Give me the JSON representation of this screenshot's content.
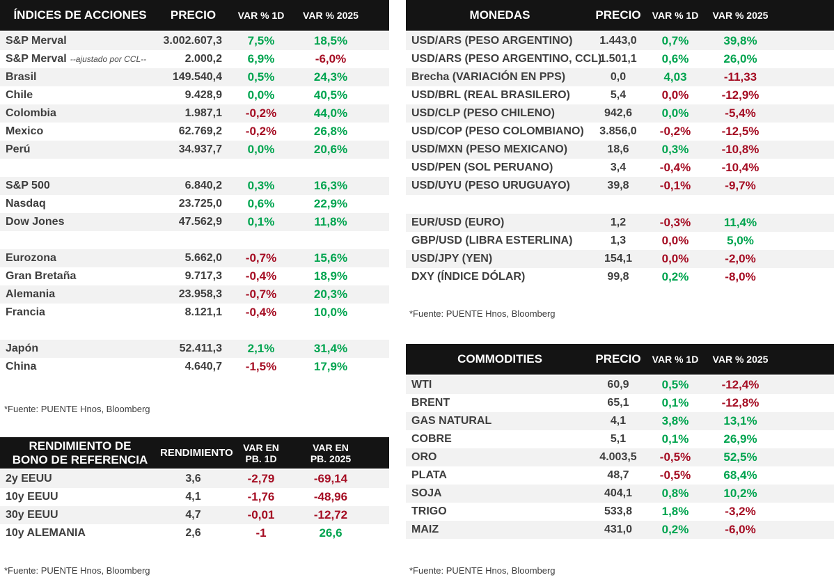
{
  "colors": {
    "positive": "#00A44F",
    "negative": "#A50D23",
    "header_bg": "#141414",
    "header_text": "#FFFFFF",
    "row_stripe": "#F2F2F2",
    "text": "#3E3E3E"
  },
  "tables": {
    "indices": {
      "title": "ÍNDICES DE ACCIONES",
      "columns": [
        "PRECIO",
        "VAR % 1D",
        "VAR % 2025"
      ],
      "footer": "*Fuente: PUENTE Hnos, Bloomberg",
      "rows": [
        {
          "label": "S&P Merval",
          "price": "3.002.607,3",
          "var_1d": "7,5%",
          "var_1d_trend": "pos",
          "var_2025": "18,5%",
          "var_2025_trend": "pos"
        },
        {
          "label": "S&P Merval",
          "note": "--ajustado por CCL--",
          "price": "2.000,2",
          "var_1d": "6,9%",
          "var_1d_trend": "pos",
          "var_2025": "-6,0%",
          "var_2025_trend": "neg"
        },
        {
          "label": "Brasil",
          "price": "149.540,4",
          "var_1d": "0,5%",
          "var_1d_trend": "pos",
          "var_2025": "24,3%",
          "var_2025_trend": "pos"
        },
        {
          "label": "Chile",
          "price": "9.428,9",
          "var_1d": "0,0%",
          "var_1d_trend": "pos",
          "var_2025": "40,5%",
          "var_2025_trend": "pos"
        },
        {
          "label": "Colombia",
          "price": "1.987,1",
          "var_1d": "-0,2%",
          "var_1d_trend": "neg",
          "var_2025": "44,0%",
          "var_2025_trend": "pos"
        },
        {
          "label": "Mexico",
          "price": "62.769,2",
          "var_1d": "-0,2%",
          "var_1d_trend": "neg",
          "var_2025": "26,8%",
          "var_2025_trend": "pos"
        },
        {
          "label": "Perú",
          "price": "34.937,7",
          "var_1d": "0,0%",
          "var_1d_trend": "pos",
          "var_2025": "20,6%",
          "var_2025_trend": "pos"
        },
        {
          "spacer": true
        },
        {
          "label": "S&P 500",
          "price": "6.840,2",
          "var_1d": "0,3%",
          "var_1d_trend": "pos",
          "var_2025": "16,3%",
          "var_2025_trend": "pos"
        },
        {
          "label": "Nasdaq",
          "price": "23.725,0",
          "var_1d": "0,6%",
          "var_1d_trend": "pos",
          "var_2025": "22,9%",
          "var_2025_trend": "pos"
        },
        {
          "label": "Dow Jones",
          "price": "47.562,9",
          "var_1d": "0,1%",
          "var_1d_trend": "pos",
          "var_2025": "11,8%",
          "var_2025_trend": "pos"
        },
        {
          "spacer": true
        },
        {
          "label": "Eurozona",
          "price": "5.662,0",
          "var_1d": "-0,7%",
          "var_1d_trend": "neg",
          "var_2025": "15,6%",
          "var_2025_trend": "pos"
        },
        {
          "label": "Gran Bretaña",
          "price": "9.717,3",
          "var_1d": "-0,4%",
          "var_1d_trend": "neg",
          "var_2025": "18,9%",
          "var_2025_trend": "pos"
        },
        {
          "label": "Alemania",
          "price": "23.958,3",
          "var_1d": "-0,7%",
          "var_1d_trend": "neg",
          "var_2025": "20,3%",
          "var_2025_trend": "pos"
        },
        {
          "label": "Francia",
          "price": "8.121,1",
          "var_1d": "-0,4%",
          "var_1d_trend": "neg",
          "var_2025": "10,0%",
          "var_2025_trend": "pos"
        },
        {
          "spacer": true
        },
        {
          "label": "Japón",
          "price": "52.411,3",
          "var_1d": "2,1%",
          "var_1d_trend": "pos",
          "var_2025": "31,4%",
          "var_2025_trend": "pos"
        },
        {
          "label": "China",
          "price": "4.640,7",
          "var_1d": "-1,5%",
          "var_1d_trend": "neg",
          "var_2025": "17,9%",
          "var_2025_trend": "pos"
        }
      ]
    },
    "bonds": {
      "title": "RENDIMIENTO DE\nBONO DE REFERENCIA",
      "columns": [
        "RENDIMIENTO",
        "VAR EN\nPB. 1D",
        "VAR EN\nPB. 2025"
      ],
      "footer": "*Fuente: PUENTE Hnos, Bloomberg",
      "rows": [
        {
          "label": "2y EEUU",
          "price": "3,6",
          "var_1d": "-2,79",
          "var_1d_trend": "neg",
          "var_2025": "-69,14",
          "var_2025_trend": "neg"
        },
        {
          "label": "10y EEUU",
          "price": "4,1",
          "var_1d": "-1,76",
          "var_1d_trend": "neg",
          "var_2025": "-48,96",
          "var_2025_trend": "neg"
        },
        {
          "label": "30y EEUU",
          "price": "4,7",
          "var_1d": "-0,01",
          "var_1d_trend": "neg",
          "var_2025": "-12,72",
          "var_2025_trend": "neg"
        },
        {
          "label": "10y ALEMANIA",
          "price": "2,6",
          "var_1d": "-1",
          "var_1d_trend": "neg",
          "var_2025": "26,6",
          "var_2025_trend": "pos"
        }
      ]
    },
    "currencies": {
      "title": "MONEDAS",
      "columns": [
        "PRECIO",
        "VAR % 1D",
        "VAR % 2025"
      ],
      "footer": "*Fuente: PUENTE Hnos, Bloomberg",
      "rows": [
        {
          "label": "USD/ARS (PESO ARGENTINO)",
          "price": "1.443,0",
          "var_1d": "0,7%",
          "var_1d_trend": "pos",
          "var_2025": "39,8%",
          "var_2025_trend": "pos"
        },
        {
          "label": "USD/ARS (PESO ARGENTINO, CCL)",
          "price": "1.501,1",
          "var_1d": "0,6%",
          "var_1d_trend": "pos",
          "var_2025": "26,0%",
          "var_2025_trend": "pos"
        },
        {
          "label": "Brecha (VARIACIÓN EN PPS)",
          "price": "0,0",
          "var_1d": "4,03",
          "var_1d_trend": "pos",
          "var_2025": "-11,33",
          "var_2025_trend": "neg"
        },
        {
          "label": "USD/BRL (REAL BRASILERO)",
          "price": "5,4",
          "var_1d": "0,0%",
          "var_1d_trend": "neg",
          "var_2025": "-12,9%",
          "var_2025_trend": "neg"
        },
        {
          "label": "USD/CLP (PESO CHILENO)",
          "price": "942,6",
          "var_1d": "0,0%",
          "var_1d_trend": "pos",
          "var_2025": "-5,4%",
          "var_2025_trend": "neg"
        },
        {
          "label": "USD/COP (PESO COLOMBIANO)",
          "price": "3.856,0",
          "var_1d": "-0,2%",
          "var_1d_trend": "neg",
          "var_2025": "-12,5%",
          "var_2025_trend": "neg"
        },
        {
          "label": "USD/MXN (PESO MEXICANO)",
          "price": "18,6",
          "var_1d": "0,3%",
          "var_1d_trend": "pos",
          "var_2025": "-10,8%",
          "var_2025_trend": "neg"
        },
        {
          "label": "USD/PEN (SOL PERUANO)",
          "price": "3,4",
          "var_1d": "-0,4%",
          "var_1d_trend": "neg",
          "var_2025": "-10,4%",
          "var_2025_trend": "neg"
        },
        {
          "label": "USD/UYU (PESO URUGUAYO)",
          "price": "39,8",
          "var_1d": "-0,1%",
          "var_1d_trend": "neg",
          "var_2025": "-9,7%",
          "var_2025_trend": "neg"
        },
        {
          "spacer": true
        },
        {
          "label": "EUR/USD (EURO)",
          "price": "1,2",
          "var_1d": "-0,3%",
          "var_1d_trend": "neg",
          "var_2025": "11,4%",
          "var_2025_trend": "pos"
        },
        {
          "label": "GBP/USD (LIBRA ESTERLINA)",
          "price": "1,3",
          "var_1d": "0,0%",
          "var_1d_trend": "neg",
          "var_2025": "5,0%",
          "var_2025_trend": "pos"
        },
        {
          "label": "USD/JPY (YEN)",
          "price": "154,1",
          "var_1d": "0,0%",
          "var_1d_trend": "neg",
          "var_2025": "-2,0%",
          "var_2025_trend": "neg"
        },
        {
          "label": "DXY (ÍNDICE DÓLAR)",
          "price": "99,8",
          "var_1d": "0,2%",
          "var_1d_trend": "pos",
          "var_2025": "-8,0%",
          "var_2025_trend": "neg"
        }
      ]
    },
    "commodities": {
      "title": "COMMODITIES",
      "columns": [
        "PRECIO",
        "VAR % 1D",
        "VAR % 2025"
      ],
      "footer": "*Fuente: PUENTE Hnos, Bloomberg",
      "rows": [
        {
          "label": "WTI",
          "price": "60,9",
          "var_1d": "0,5%",
          "var_1d_trend": "pos",
          "var_2025": "-12,4%",
          "var_2025_trend": "neg"
        },
        {
          "label": "BRENT",
          "price": "65,1",
          "var_1d": "0,1%",
          "var_1d_trend": "pos",
          "var_2025": "-12,8%",
          "var_2025_trend": "neg"
        },
        {
          "label": "GAS NATURAL",
          "price": "4,1",
          "var_1d": "3,8%",
          "var_1d_trend": "pos",
          "var_2025": "13,1%",
          "var_2025_trend": "pos"
        },
        {
          "label": "COBRE",
          "price": "5,1",
          "var_1d": "0,1%",
          "var_1d_trend": "pos",
          "var_2025": "26,9%",
          "var_2025_trend": "pos"
        },
        {
          "label": "ORO",
          "price": "4.003,5",
          "var_1d": "-0,5%",
          "var_1d_trend": "neg",
          "var_2025": "52,5%",
          "var_2025_trend": "pos"
        },
        {
          "label": "PLATA",
          "price": "48,7",
          "var_1d": "-0,5%",
          "var_1d_trend": "neg",
          "var_2025": "68,4%",
          "var_2025_trend": "pos"
        },
        {
          "label": "SOJA",
          "price": "404,1",
          "var_1d": "0,8%",
          "var_1d_trend": "pos",
          "var_2025": "10,2%",
          "var_2025_trend": "pos"
        },
        {
          "label": "TRIGO",
          "price": "533,8",
          "var_1d": "1,8%",
          "var_1d_trend": "pos",
          "var_2025": "-3,2%",
          "var_2025_trend": "neg"
        },
        {
          "label": "MAIZ",
          "price": "431,0",
          "var_1d": "0,2%",
          "var_1d_trend": "pos",
          "var_2025": "-6,0%",
          "var_2025_trend": "neg"
        }
      ]
    }
  }
}
